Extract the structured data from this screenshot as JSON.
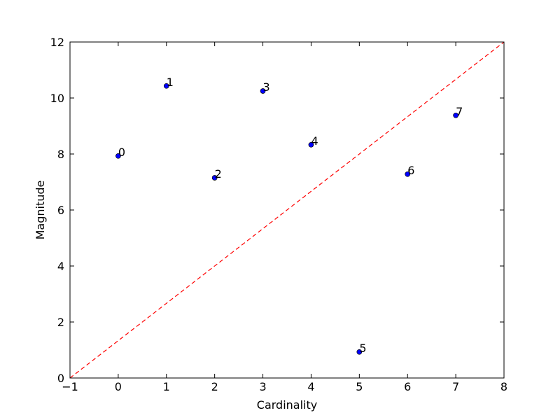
{
  "chart_data": {
    "type": "scatter",
    "x_label": "Cardinality",
    "y_label": "Magnitude",
    "x": [
      0,
      1,
      2,
      3,
      4,
      5,
      6,
      7
    ],
    "values": [
      7.93,
      10.43,
      7.15,
      10.25,
      8.33,
      0.93,
      7.28,
      9.38
    ],
    "point_labels": [
      "0",
      "1",
      "2",
      "3",
      "4",
      "5",
      "6",
      "7"
    ],
    "color": "#0000ff",
    "reference_line": {
      "x": [
        -1,
        8
      ],
      "y": [
        0,
        12
      ],
      "color": "#ff0000",
      "style": "dashed"
    },
    "xlim": [
      -1,
      8
    ],
    "xticks": [
      {
        "value": -1,
        "label": "−1"
      },
      0,
      1,
      2,
      3,
      4,
      5,
      6,
      7,
      8
    ],
    "ylim": [
      0,
      12
    ],
    "yticks": [
      0,
      2,
      4,
      6,
      8,
      10,
      12
    ],
    "grid": false
  }
}
